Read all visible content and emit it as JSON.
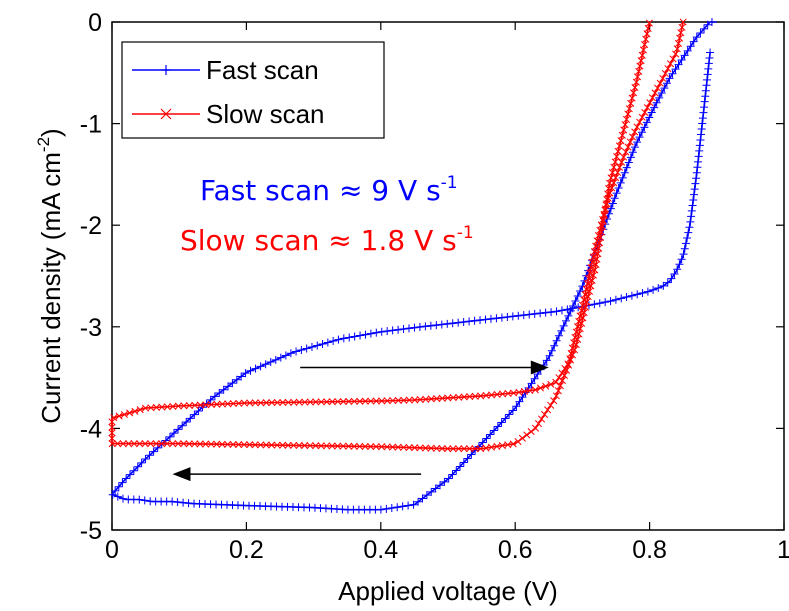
{
  "chart_data": {
    "type": "line",
    "title": "",
    "xlabel": "Applied voltage (V)",
    "ylabel": "Current density (mA cm",
    "ylabel_sup": "-2",
    "ylabel_close": ")",
    "xlim": [
      0,
      1
    ],
    "ylim": [
      -5,
      0
    ],
    "xticks": [
      0,
      0.2,
      0.4,
      0.6,
      0.8,
      1
    ],
    "xtick_labels": [
      "0",
      "0.2",
      "0.4",
      "0.6",
      "0.8",
      "1"
    ],
    "yticks": [
      0,
      -1,
      -2,
      -3,
      -4,
      -5
    ],
    "ytick_labels": [
      "0",
      "-1",
      "-2",
      "-3",
      "-4",
      "-5"
    ],
    "grid": false,
    "legend_position": "top-left",
    "series": [
      {
        "name": "Fast scan",
        "color": "#0000ff",
        "marker": "plus",
        "x": [
          0.89,
          0.88,
          0.87,
          0.86,
          0.85,
          0.84,
          0.83,
          0.82,
          0.8,
          0.77,
          0.74,
          0.7,
          0.66,
          0.62,
          0.58,
          0.54,
          0.5,
          0.46,
          0.4,
          0.34,
          0.27,
          0.2,
          0.15,
          0.1,
          0.05,
          0.02,
          0.0,
          0.0,
          0.02,
          0.04,
          0.06,
          0.09,
          0.12,
          0.16,
          0.2,
          0.25,
          0.3,
          0.35,
          0.4,
          0.45,
          0.5,
          0.55,
          0.6,
          0.65,
          0.7,
          0.75,
          0.78,
          0.81,
          0.83,
          0.85,
          0.87,
          0.89,
          0.9
        ],
        "y": [
          -0.3,
          -0.9,
          -1.5,
          -2.0,
          -2.3,
          -2.45,
          -2.55,
          -2.6,
          -2.65,
          -2.7,
          -2.75,
          -2.8,
          -2.85,
          -2.88,
          -2.91,
          -2.94,
          -2.97,
          -3.0,
          -3.05,
          -3.12,
          -3.25,
          -3.45,
          -3.7,
          -4.0,
          -4.3,
          -4.5,
          -4.65,
          -4.65,
          -4.7,
          -4.7,
          -4.72,
          -4.72,
          -4.74,
          -4.75,
          -4.76,
          -4.77,
          -4.78,
          -4.8,
          -4.8,
          -4.75,
          -4.5,
          -4.15,
          -3.8,
          -3.3,
          -2.6,
          -1.7,
          -1.2,
          -0.8,
          -0.55,
          -0.35,
          -0.15,
          0.0,
          0.0
        ]
      },
      {
        "name": "Slow scan",
        "color": "#ff0000",
        "marker": "x",
        "x": [
          0.85,
          0.84,
          0.82,
          0.8,
          0.78,
          0.76,
          0.74,
          0.72,
          0.7,
          0.68,
          0.66,
          0.63,
          0.6,
          0.55,
          0.5,
          0.45,
          0.4,
          0.3,
          0.2,
          0.1,
          0.05,
          0.0,
          0.0,
          0.05,
          0.1,
          0.2,
          0.3,
          0.4,
          0.5,
          0.55,
          0.6,
          0.63,
          0.66,
          0.69,
          0.72,
          0.74,
          0.76,
          0.78,
          0.79,
          0.8
        ],
        "y": [
          0.0,
          -0.3,
          -0.55,
          -0.8,
          -1.05,
          -1.35,
          -1.7,
          -2.2,
          -2.8,
          -3.35,
          -3.55,
          -3.62,
          -3.65,
          -3.68,
          -3.7,
          -3.72,
          -3.73,
          -3.74,
          -3.75,
          -3.78,
          -3.8,
          -3.9,
          -4.15,
          -4.15,
          -4.15,
          -4.16,
          -4.17,
          -4.18,
          -4.2,
          -4.2,
          -4.15,
          -4.0,
          -3.7,
          -3.2,
          -2.4,
          -1.6,
          -1.1,
          -0.6,
          -0.3,
          0.0
        ]
      }
    ],
    "annotations": [
      {
        "text": "Fast scan ≈ 9 V s",
        "sup": "-1",
        "color": "#0000ff"
      },
      {
        "text": "Slow scan ≈ 1.8 V s",
        "sup": "-1",
        "color": "#ff0000"
      }
    ],
    "arrows": [
      {
        "direction": "right",
        "x1": 0.28,
        "x2": 0.65,
        "y": -3.4
      },
      {
        "direction": "left",
        "x1": 0.46,
        "x2": 0.09,
        "y": -4.45
      }
    ]
  }
}
